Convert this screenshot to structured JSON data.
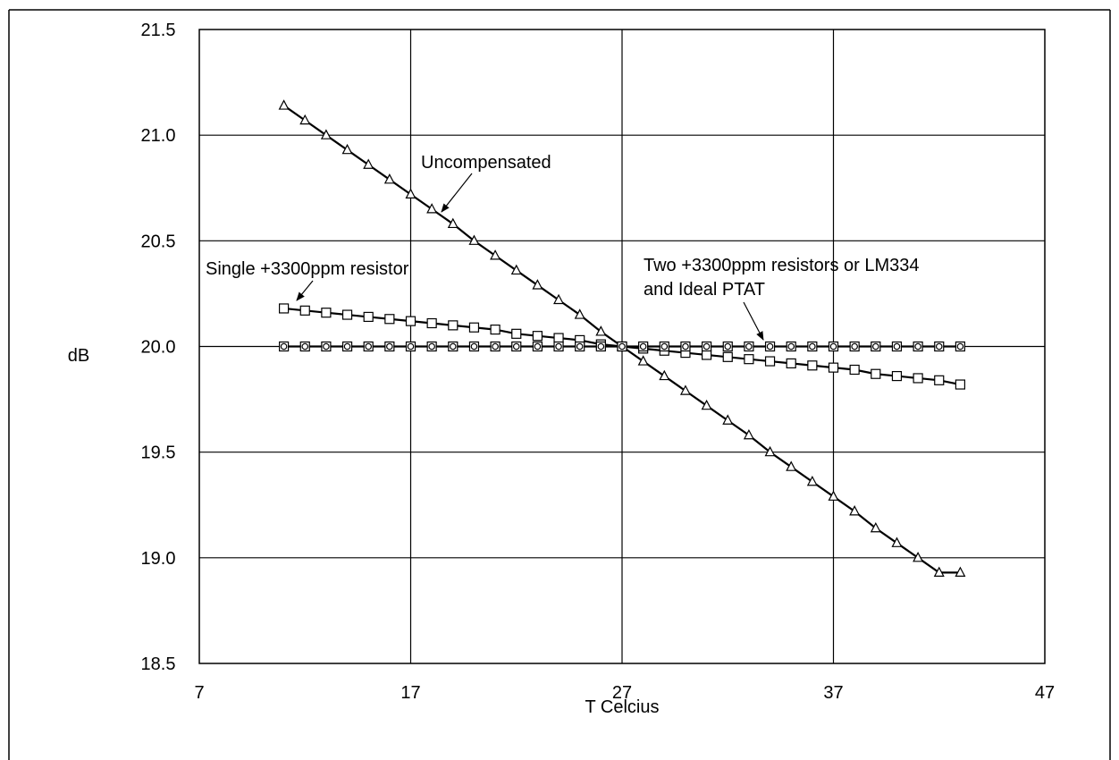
{
  "chart_data": {
    "type": "line",
    "title": "",
    "xlabel": "T Celcius",
    "ylabel": "dB",
    "xlim": [
      7,
      47
    ],
    "ylim": [
      18.5,
      21.5
    ],
    "xticks": [
      7,
      17,
      27,
      37,
      47
    ],
    "yticks": [
      18.5,
      19.0,
      19.5,
      20.0,
      20.5,
      21.0,
      21.5
    ],
    "ytick_labels": [
      "18.5",
      "19.0",
      "19.5",
      "20.0",
      "20.5",
      "21.0",
      "21.5"
    ],
    "xtick_labels": [
      "7",
      "17",
      "27",
      "37",
      "47"
    ],
    "grid": true,
    "x": [
      11,
      12,
      13,
      14,
      15,
      16,
      17,
      18,
      19,
      20,
      21,
      22,
      23,
      24,
      25,
      26,
      27,
      28,
      29,
      30,
      31,
      32,
      33,
      34,
      35,
      36,
      37,
      38,
      39,
      40,
      41,
      42,
      43
    ],
    "series": [
      {
        "marker": "triangle",
        "values": [
          21.14,
          21.07,
          21.0,
          20.93,
          20.86,
          20.79,
          20.72,
          20.65,
          20.58,
          20.5,
          20.43,
          20.36,
          20.29,
          20.22,
          20.15,
          20.07,
          20.0,
          19.93,
          19.86,
          19.79,
          19.72,
          19.65,
          19.58,
          19.5,
          19.43,
          19.36,
          19.29,
          19.22,
          19.14,
          19.07,
          19.0,
          18.93,
          18.93
        ]
      },
      {
        "marker": "square",
        "values": [
          20.18,
          20.17,
          20.16,
          20.15,
          20.14,
          20.13,
          20.12,
          20.11,
          20.1,
          20.09,
          20.08,
          20.06,
          20.05,
          20.04,
          20.03,
          20.01,
          20.0,
          19.99,
          19.98,
          19.97,
          19.96,
          19.95,
          19.94,
          19.93,
          19.92,
          19.91,
          19.9,
          19.89,
          19.87,
          19.86,
          19.85,
          19.84,
          19.82
        ]
      },
      {
        "marker": "circle-square",
        "values": [
          20.0,
          20.0,
          20.0,
          20.0,
          20.0,
          20.0,
          20.0,
          20.0,
          20.0,
          20.0,
          20.0,
          20.0,
          20.0,
          20.0,
          20.0,
          20.0,
          20.0,
          20.0,
          20.0,
          20.0,
          20.0,
          20.0,
          20.0,
          20.0,
          20.0,
          20.0,
          20.0,
          20.0,
          20.0,
          20.0,
          20.0,
          20.0,
          20.0
        ]
      }
    ],
    "annotations": {
      "uncompensated": "Uncompensated",
      "single": "Single +3300ppm resistor",
      "two_line1": "Two +3300ppm resistors or LM334",
      "two_line2": "and Ideal PTAT"
    }
  }
}
